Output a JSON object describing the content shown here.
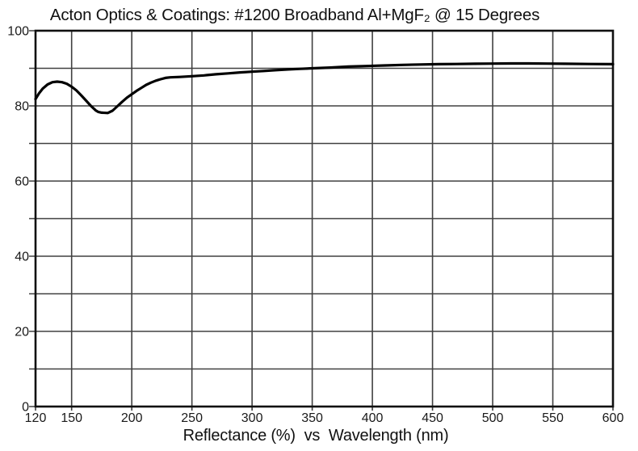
{
  "figure": {
    "background": "#ffffff"
  },
  "chart_data": {
    "type": "line",
    "title": "Acton Optics & Coatings: #1200 Broadband Al+MgF₂ @ 15 Degrees",
    "xlabel": "Reflectance (%)  vs  Wavelength (nm)",
    "ylabel": "",
    "x_axis": {
      "min": 120,
      "max": 600,
      "unit": "nm",
      "tick_labels": [
        120,
        150,
        200,
        250,
        300,
        350,
        400,
        450,
        500,
        550,
        600
      ],
      "gridlines": [
        150,
        200,
        250,
        300,
        350,
        400,
        450,
        500,
        550,
        600
      ]
    },
    "y_axis": {
      "min": 0,
      "max": 100,
      "unit": "%",
      "tick_labels": [
        100,
        80,
        60,
        40,
        20,
        0
      ],
      "gridline_step": 10
    },
    "grid": true,
    "legend": false,
    "series": [
      {
        "name": "#1200 Broadband Al+MgF2 reflectance at 15 degrees",
        "color": "#000000",
        "points": [
          [
            120,
            81.8
          ],
          [
            123,
            83.4
          ],
          [
            126,
            84.6
          ],
          [
            130,
            85.7
          ],
          [
            134,
            86.3
          ],
          [
            138,
            86.45
          ],
          [
            142,
            86.3
          ],
          [
            146,
            85.9
          ],
          [
            150,
            85.1
          ],
          [
            154,
            84.1
          ],
          [
            158,
            82.8
          ],
          [
            162,
            81.4
          ],
          [
            166,
            80.0
          ],
          [
            170,
            78.8
          ],
          [
            172,
            78.4
          ],
          [
            175,
            78.2
          ],
          [
            180,
            78.1
          ],
          [
            184,
            78.7
          ],
          [
            188,
            79.9
          ],
          [
            192,
            81.1
          ],
          [
            196,
            82.2
          ],
          [
            200,
            83.1
          ],
          [
            204,
            84.0
          ],
          [
            208,
            84.8
          ],
          [
            212,
            85.6
          ],
          [
            216,
            86.2
          ],
          [
            220,
            86.7
          ],
          [
            224,
            87.1
          ],
          [
            228,
            87.45
          ],
          [
            232,
            87.6
          ],
          [
            240,
            87.7
          ],
          [
            250,
            87.9
          ],
          [
            260,
            88.1
          ],
          [
            270,
            88.4
          ],
          [
            280,
            88.65
          ],
          [
            290,
            88.9
          ],
          [
            300,
            89.1
          ],
          [
            310,
            89.3
          ],
          [
            320,
            89.5
          ],
          [
            330,
            89.7
          ],
          [
            340,
            89.85
          ],
          [
            350,
            90.0
          ],
          [
            365,
            90.2
          ],
          [
            380,
            90.45
          ],
          [
            395,
            90.6
          ],
          [
            410,
            90.75
          ],
          [
            425,
            90.9
          ],
          [
            440,
            91.0
          ],
          [
            455,
            91.1
          ],
          [
            470,
            91.15
          ],
          [
            485,
            91.2
          ],
          [
            500,
            91.25
          ],
          [
            515,
            91.3
          ],
          [
            530,
            91.3
          ],
          [
            545,
            91.25
          ],
          [
            560,
            91.2
          ],
          [
            580,
            91.15
          ],
          [
            600,
            91.1
          ]
        ]
      }
    ]
  },
  "style": {
    "grid_color": "#404040",
    "border_color": "#101010",
    "curve_color": "#000000",
    "text_color": "#1a1a1a"
  }
}
